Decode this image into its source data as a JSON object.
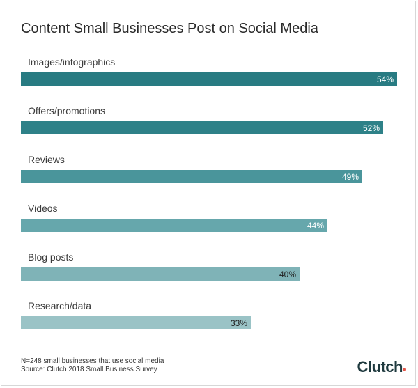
{
  "chart_data": {
    "type": "bar",
    "orientation": "horizontal",
    "title": "Content Small Businesses Post on Social Media",
    "categories": [
      "Images/infographics",
      "Offers/promotions",
      "Reviews",
      "Videos",
      "Blog posts",
      "Research/data"
    ],
    "values": [
      54,
      52,
      49,
      44,
      40,
      33
    ],
    "value_labels": [
      "54%",
      "52%",
      "49%",
      "44%",
      "40%",
      "33%"
    ],
    "xlim": [
      0,
      54
    ],
    "grid": false,
    "legend": "none",
    "colors": [
      "#287b82",
      "#2e8188",
      "#4a959b",
      "#66a7ac",
      "#7fb3b7",
      "#9ac3c6"
    ],
    "label_colors": [
      "#ffffff",
      "#ffffff",
      "#ffffff",
      "#ffffff",
      "#1f1f1f",
      "#1f1f1f"
    ]
  },
  "footer": {
    "note": "N=248 small businesses that use social media",
    "source": "Source: Clutch 2018 Small Business Survey"
  },
  "brand": {
    "logo_text": "Clutch",
    "accent": "#e4574a",
    "color": "#1f3a3f"
  }
}
